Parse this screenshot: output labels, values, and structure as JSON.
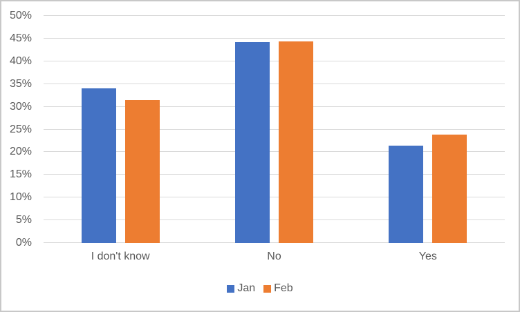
{
  "chart_data": {
    "type": "bar",
    "title": "",
    "categories": [
      "I don't know",
      "No",
      "Yes"
    ],
    "series": [
      {
        "name": "Jan",
        "color": "#4472C4",
        "values": [
          34,
          44.2,
          21.4
        ]
      },
      {
        "name": "Feb",
        "color": "#ED7D31",
        "values": [
          31.5,
          44.4,
          23.9
        ]
      }
    ],
    "y_axis": {
      "min": 0,
      "max": 50,
      "step": 5,
      "format": "percent",
      "tick_labels": [
        "0%",
        "5%",
        "10%",
        "15%",
        "20%",
        "25%",
        "30%",
        "35%",
        "40%",
        "45%",
        "50%"
      ]
    },
    "grid": true,
    "legend_position": "bottom",
    "colors": {
      "gridline": "#D9D9D9",
      "axis_text": "#595959",
      "frame_border": "#C8C8C8",
      "background": "#FFFFFF"
    }
  }
}
